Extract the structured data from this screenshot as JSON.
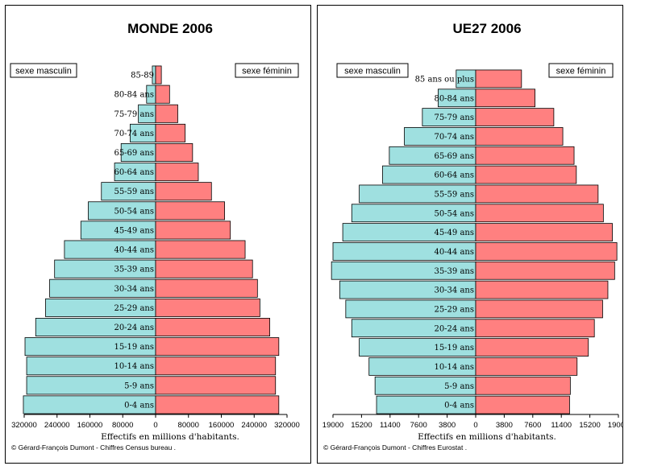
{
  "colors": {
    "male": "#9fe0e0",
    "female": "#ff8080",
    "stroke": "#000000"
  },
  "chart_data": [
    {
      "type": "bar",
      "orientation": "horizontal-population-pyramid",
      "title": "MONDE  2006",
      "legend_left": "sexe masculin",
      "legend_right": "sexe féminin",
      "xlabel": "Effectifs en millions  d'habitants.",
      "source": "© Gérard-François Dumont - Chiffres Census bureau .",
      "xlim": [
        -320000,
        320000
      ],
      "tick_labels": [
        "320000",
        "240000",
        "160000",
        "80000",
        "0",
        "80000",
        "160000",
        "240000",
        "320000"
      ],
      "categories": [
        "0-4 ans",
        "5-9 ans",
        "10-14 ans",
        "15-19 ans",
        "20-24 ans",
        "25-29 ans",
        "30-34 ans",
        "35-39 ans",
        "40-44 ans",
        "45-49 ans",
        "50-54 ans",
        "55-59 ans",
        "60-64 ans",
        "65-69 ans",
        "70-74 ans",
        "75-79 ans",
        "80-84 ans",
        "85-89"
      ],
      "series": [
        {
          "name": "sexe masculin",
          "values": [
            322000,
            314000,
            314000,
            318000,
            292000,
            268000,
            258000,
            246000,
            222000,
            182000,
            164000,
            132000,
            100000,
            84000,
            62000,
            42000,
            22000,
            8000
          ]
        },
        {
          "name": "sexe féminin",
          "values": [
            300000,
            292000,
            292000,
            300000,
            278000,
            254000,
            248000,
            236000,
            218000,
            182000,
            168000,
            136000,
            104000,
            90000,
            72000,
            54000,
            34000,
            14000
          ]
        }
      ]
    },
    {
      "type": "bar",
      "orientation": "horizontal-population-pyramid",
      "title": "UE27  2006",
      "legend_left": "sexe masculin",
      "legend_right": "sexe féminin",
      "xlabel": "Effectifs en millions  d'habitants.",
      "source": "© Gérard-François Dumont - Chiffres Eurostat .",
      "xlim": [
        -19000,
        19000
      ],
      "tick_labels": [
        "19000",
        "15200",
        "11400",
        "7600",
        "3800",
        "0",
        "3800",
        "7600",
        "11400",
        "15200",
        "19000"
      ],
      "categories": [
        "0-4 ans",
        "5-9 ans",
        "10-14 ans",
        "15-19 ans",
        "20-24 ans",
        "25-29 ans",
        "30-34 ans",
        "35-39 ans",
        "40-44 ans",
        "45-49 ans",
        "50-54 ans",
        "55-59 ans",
        "60-64 ans",
        "65-69 ans",
        "70-74 ans",
        "75-79 ans",
        "80-84 ans",
        "85 ans ou plus"
      ],
      "series": [
        {
          "name": "sexe masculin",
          "values": [
            13200,
            13400,
            14200,
            15500,
            16500,
            17300,
            18100,
            19200,
            19000,
            17700,
            16500,
            15500,
            12400,
            11500,
            9500,
            7100,
            5000,
            2600
          ]
        },
        {
          "name": "sexe féminin",
          "values": [
            12500,
            12600,
            13500,
            15000,
            15800,
            16900,
            17600,
            18500,
            18800,
            18200,
            17000,
            16300,
            13400,
            13100,
            11600,
            10400,
            7900,
            6100
          ]
        }
      ]
    }
  ]
}
